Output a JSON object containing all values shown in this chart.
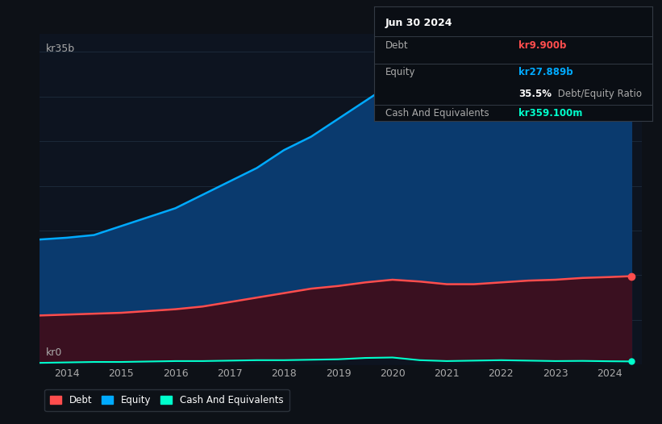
{
  "background_color": "#0d1117",
  "plot_bg_color": "#0d1420",
  "title_box": {
    "date": "Jun 30 2024",
    "debt_label": "Debt",
    "debt_value": "kr9.900b",
    "debt_color": "#ff4d4d",
    "equity_label": "Equity",
    "equity_value": "kr27.889b",
    "equity_color": "#00aaff",
    "ratio_bold": "35.5%",
    "ratio_rest": " Debt/Equity Ratio",
    "cash_label": "Cash And Equivalents",
    "cash_value": "kr359.100m",
    "cash_color": "#00ffcc"
  },
  "ylabel": "kr35b",
  "y0_label": "kr0",
  "equity_data": [
    [
      2013.5,
      14.0
    ],
    [
      2014.0,
      14.2
    ],
    [
      2014.5,
      14.5
    ],
    [
      2015.0,
      15.5
    ],
    [
      2015.5,
      16.5
    ],
    [
      2016.0,
      17.5
    ],
    [
      2016.5,
      19.0
    ],
    [
      2017.0,
      20.5
    ],
    [
      2017.5,
      22.0
    ],
    [
      2018.0,
      24.0
    ],
    [
      2018.5,
      25.5
    ],
    [
      2019.0,
      27.5
    ],
    [
      2019.5,
      29.5
    ],
    [
      2020.0,
      31.5
    ],
    [
      2020.5,
      30.5
    ],
    [
      2021.0,
      29.0
    ],
    [
      2021.5,
      28.5
    ],
    [
      2022.0,
      31.5
    ],
    [
      2022.5,
      32.0
    ],
    [
      2023.0,
      30.5
    ],
    [
      2023.5,
      29.5
    ],
    [
      2024.0,
      28.5
    ],
    [
      2024.4,
      27.9
    ]
  ],
  "debt_data": [
    [
      2013.5,
      5.5
    ],
    [
      2014.0,
      5.6
    ],
    [
      2014.5,
      5.7
    ],
    [
      2015.0,
      5.8
    ],
    [
      2015.5,
      6.0
    ],
    [
      2016.0,
      6.2
    ],
    [
      2016.5,
      6.5
    ],
    [
      2017.0,
      7.0
    ],
    [
      2017.5,
      7.5
    ],
    [
      2018.0,
      8.0
    ],
    [
      2018.5,
      8.5
    ],
    [
      2019.0,
      8.8
    ],
    [
      2019.5,
      9.2
    ],
    [
      2020.0,
      9.5
    ],
    [
      2020.5,
      9.3
    ],
    [
      2021.0,
      9.0
    ],
    [
      2021.5,
      9.0
    ],
    [
      2022.0,
      9.2
    ],
    [
      2022.5,
      9.4
    ],
    [
      2023.0,
      9.5
    ],
    [
      2023.5,
      9.7
    ],
    [
      2024.0,
      9.8
    ],
    [
      2024.4,
      9.9
    ]
  ],
  "cash_data": [
    [
      2013.5,
      0.2
    ],
    [
      2014.0,
      0.25
    ],
    [
      2014.5,
      0.3
    ],
    [
      2015.0,
      0.3
    ],
    [
      2015.5,
      0.35
    ],
    [
      2016.0,
      0.4
    ],
    [
      2016.5,
      0.4
    ],
    [
      2017.0,
      0.45
    ],
    [
      2017.5,
      0.5
    ],
    [
      2018.0,
      0.5
    ],
    [
      2018.5,
      0.55
    ],
    [
      2019.0,
      0.6
    ],
    [
      2019.5,
      0.75
    ],
    [
      2020.0,
      0.8
    ],
    [
      2020.5,
      0.5
    ],
    [
      2021.0,
      0.4
    ],
    [
      2021.5,
      0.45
    ],
    [
      2022.0,
      0.5
    ],
    [
      2022.5,
      0.45
    ],
    [
      2023.0,
      0.4
    ],
    [
      2023.5,
      0.42
    ],
    [
      2024.0,
      0.38
    ],
    [
      2024.4,
      0.36
    ]
  ],
  "equity_color": "#00aaff",
  "equity_fill": "#0a3a6e",
  "debt_color": "#ff4d4d",
  "debt_fill": "#3a1020",
  "cash_color": "#00ffcc",
  "grid_color": "#1e2d3d",
  "ylim": [
    0,
    37
  ],
  "xlim": [
    2013.5,
    2024.6
  ],
  "xtick_years": [
    2014,
    2015,
    2016,
    2017,
    2018,
    2019,
    2020,
    2021,
    2022,
    2023,
    2024
  ],
  "grid_yvals": [
    0,
    5,
    10,
    15,
    20,
    25,
    30,
    35
  ],
  "legend_items": [
    {
      "label": "Debt",
      "color": "#ff4d4d"
    },
    {
      "label": "Equity",
      "color": "#00aaff"
    },
    {
      "label": "Cash And Equivalents",
      "color": "#00ffcc"
    }
  ]
}
